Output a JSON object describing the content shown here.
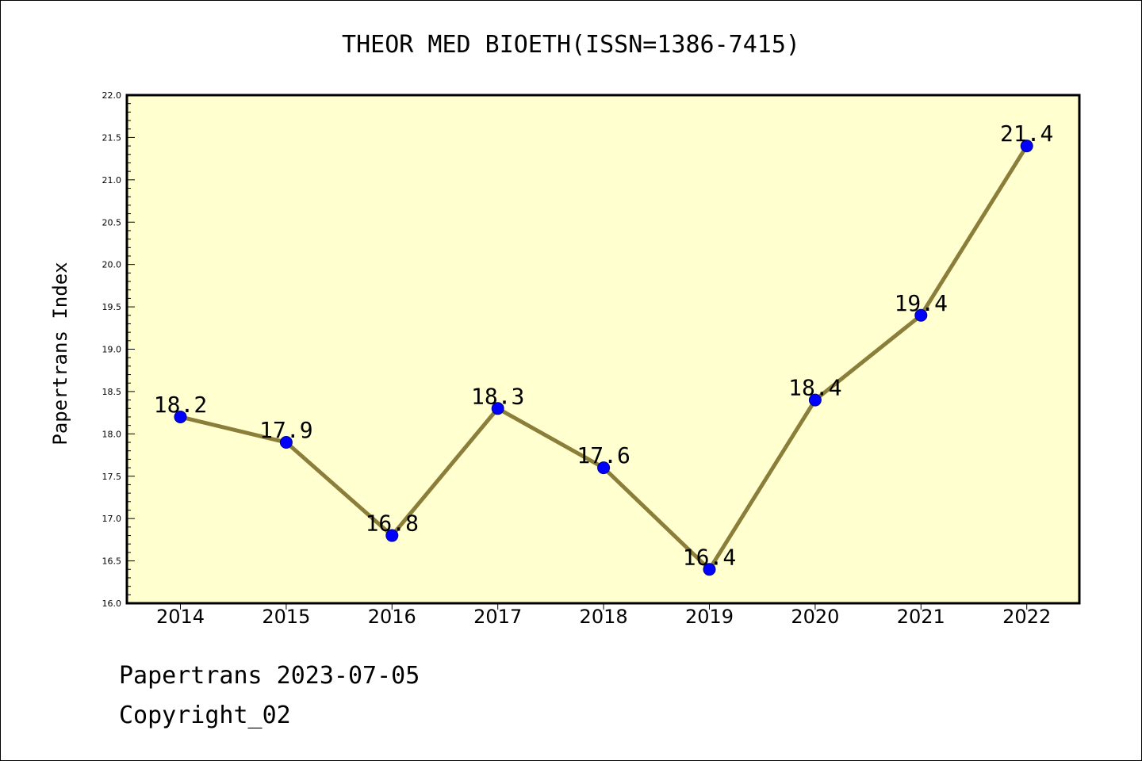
{
  "chart_data": {
    "type": "line",
    "title": "THEOR MED BIOETH(ISSN=1386-7415)",
    "xlabel": "",
    "ylabel": "Papertrans Index",
    "categories": [
      "2014",
      "2015",
      "2016",
      "2017",
      "2018",
      "2019",
      "2020",
      "2021",
      "2022"
    ],
    "series": [
      {
        "values": [
          18.2,
          17.9,
          16.8,
          18.3,
          17.6,
          16.4,
          18.4,
          19.4,
          21.4
        ],
        "data_labels": [
          "18.2",
          "17.9",
          "16.8",
          "18.3",
          "17.6",
          "16.4",
          "18.4",
          "19.4",
          "21.4"
        ]
      }
    ],
    "ylim": [
      16.0,
      22.0
    ],
    "yticks": [
      "16.0",
      "16.5",
      "17.0",
      "17.5",
      "18.0",
      "18.5",
      "19.0",
      "19.5",
      "20.0",
      "20.5",
      "21.0",
      "21.5",
      "22.0"
    ],
    "grid": false,
    "legend": "none",
    "colors": {
      "plot_background": "#ffffd0",
      "line": "#8b7d3a",
      "marker": "#0000ff",
      "marker_edge": "#00008b"
    }
  },
  "footer": {
    "date_line": "Papertrans 2023-07-05",
    "copyright_line": "Copyright_02"
  }
}
